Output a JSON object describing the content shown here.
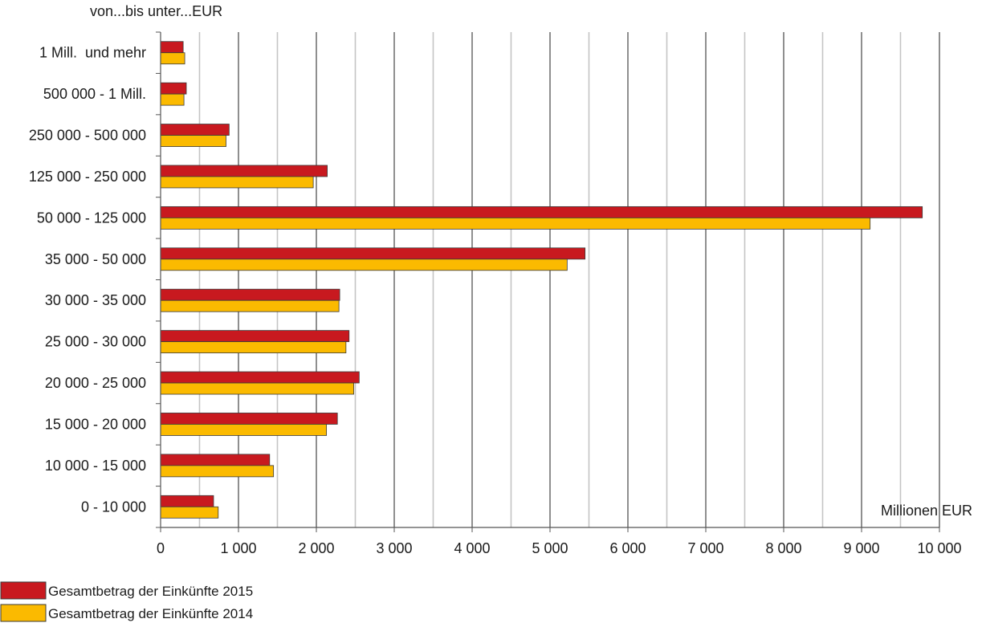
{
  "chart_data": {
    "type": "bar",
    "orientation": "horizontal",
    "y_axis_title": "von...bis unter...EUR",
    "x_axis_title": "Millionen EUR",
    "xlim": [
      0,
      10000
    ],
    "x_ticks": [
      0,
      1000,
      2000,
      3000,
      4000,
      5000,
      6000,
      7000,
      8000,
      9000,
      10000
    ],
    "x_tick_labels": [
      "0",
      "1 000",
      "2 000",
      "3 000",
      "4 000",
      "5 000",
      "6 000",
      "7 000",
      "8 000",
      "9 000",
      "10 000"
    ],
    "grid": true,
    "legend_position": "bottom-left",
    "categories": [
      "1 Mill.  und mehr",
      "500 000 - 1 Mill.",
      "250 000 - 500 000",
      "125 000 - 250 000",
      "50 000 - 125 000",
      "35 000 - 50 000",
      "30 000 - 35 000",
      "25 000 - 30 000",
      "20 000 - 25 000",
      "15 000 - 20 000",
      "10 000 - 15 000",
      "0 - 10 000"
    ],
    "series": [
      {
        "name": "Gesamtbetrag der Einkünfte 2015",
        "color": "#c8191f",
        "values": [
          290,
          330,
          880,
          2140,
          9780,
          5450,
          2300,
          2420,
          2550,
          2270,
          1400,
          680
        ]
      },
      {
        "name": "Gesamtbetrag der Einkünfte 2014",
        "color": "#fbba00",
        "values": [
          310,
          300,
          840,
          1960,
          9110,
          5220,
          2290,
          2380,
          2480,
          2130,
          1450,
          740
        ]
      }
    ]
  }
}
